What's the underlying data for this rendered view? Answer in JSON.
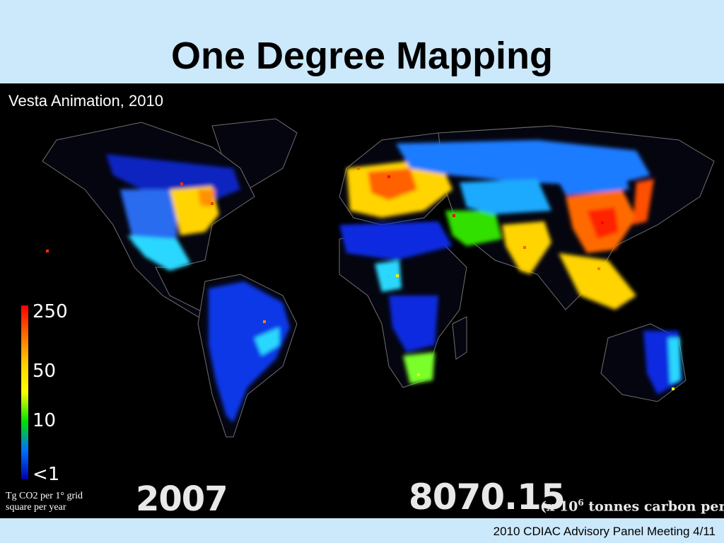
{
  "slide": {
    "title": "One Degree Mapping",
    "footer": "2010 CDIAC Advisory Panel Meeting 4/11"
  },
  "map": {
    "caption": "Vesta Animation, 2010",
    "year": "2007",
    "total_value": "8070.15",
    "total_unit_prefix": "(x 10",
    "total_unit_exponent": "6",
    "total_unit_suffix": " tonnes carbon per year",
    "legend": {
      "labels": [
        "250",
        "50",
        "10",
        "<1"
      ],
      "unit_text": "Tg CO2 per 1° grid square per year",
      "colors": [
        "#ff0000",
        "#ff6a00",
        "#ffd000",
        "#ffff00",
        "#00e000",
        "#0070ff",
        "#0000aa"
      ]
    }
  }
}
